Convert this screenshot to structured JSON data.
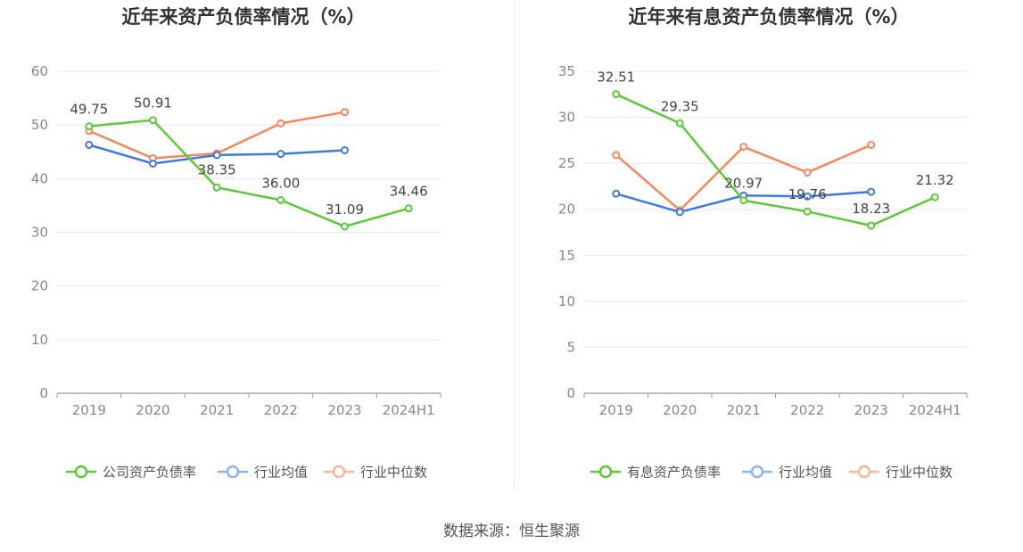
{
  "source": "数据来源：恒生聚源",
  "chart_data": [
    {
      "type": "line",
      "title": "近年来资产负债率情况（%）",
      "categories": [
        "2019",
        "2020",
        "2021",
        "2022",
        "2023",
        "2024H1"
      ],
      "ylim": [
        0,
        60
      ],
      "yticks": [
        0,
        10,
        20,
        30,
        40,
        50,
        60
      ],
      "grid": true,
      "legend_position": "bottom",
      "series": [
        {
          "name": "公司资产负债率",
          "color": "#5ec73a",
          "values": [
            49.75,
            50.91,
            38.35,
            36.0,
            31.09,
            34.46
          ],
          "labels": [
            "49.75",
            "50.91",
            "38.35",
            "36.00",
            "31.09",
            "34.46"
          ]
        },
        {
          "name": "行业均值",
          "color": "#3f79e0",
          "values": [
            46.3,
            42.8,
            44.4,
            44.6,
            45.3,
            null
          ]
        },
        {
          "name": "行业中位数",
          "color": "#f4875b",
          "values": [
            48.9,
            43.8,
            44.7,
            50.3,
            52.4,
            null
          ]
        }
      ]
    },
    {
      "type": "line",
      "title": "近年来有息资产负债率情况（%）",
      "categories": [
        "2019",
        "2020",
        "2021",
        "2022",
        "2023",
        "2024H1"
      ],
      "ylim": [
        0,
        35
      ],
      "yticks": [
        0,
        5,
        10,
        15,
        20,
        25,
        30,
        35
      ],
      "grid": true,
      "legend_position": "bottom",
      "series": [
        {
          "name": "有息资产负债率",
          "color": "#5ec73a",
          "values": [
            32.51,
            29.35,
            20.97,
            19.76,
            18.23,
            21.32
          ],
          "labels": [
            "32.51",
            "29.35",
            "20.97",
            "19.76",
            "18.23",
            "21.32"
          ]
        },
        {
          "name": "行业均值",
          "color": "#3f79e0",
          "values": [
            21.7,
            19.7,
            21.5,
            21.4,
            21.9,
            null
          ]
        },
        {
          "name": "行业中位数",
          "color": "#f4875b",
          "values": [
            25.9,
            19.9,
            26.8,
            24.0,
            27.0,
            null
          ]
        }
      ]
    }
  ]
}
